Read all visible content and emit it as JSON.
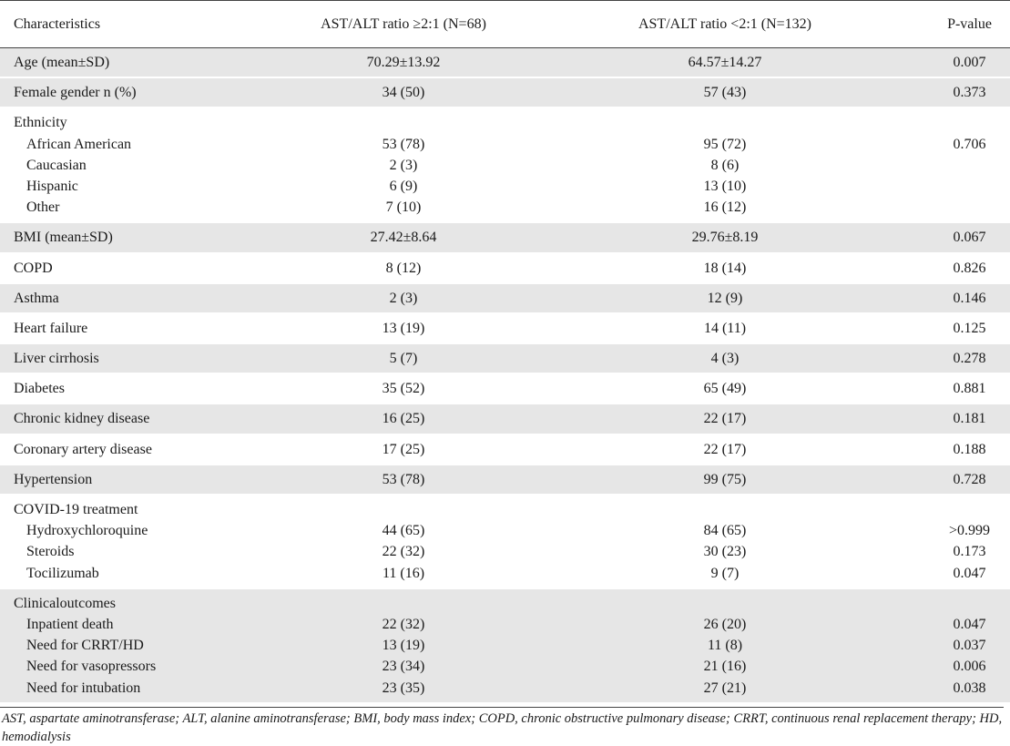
{
  "headers": [
    "Characteristics",
    "AST/ALT ratio ≥2:1 (N=68)",
    "AST/ALT ratio <2:1 (N=132)",
    "P-value"
  ],
  "simple_rows": [
    {
      "label": "Age (mean±SD)",
      "a": "70.29±13.92",
      "b": "64.57±14.27",
      "p": "0.007"
    },
    {
      "label": "Female gender n (%)",
      "a": "34 (50)",
      "b": "57 (43)",
      "p": "0.373"
    }
  ],
  "ethnicity": {
    "label": "Ethnicity",
    "items": [
      {
        "label": "African American",
        "a": "53 (78)",
        "b": "95 (72)",
        "p": "0.706"
      },
      {
        "label": "Caucasian",
        "a": "2 (3)",
        "b": "8 (6)",
        "p": ""
      },
      {
        "label": "Hispanic",
        "a": "6 (9)",
        "b": "13 (10)",
        "p": ""
      },
      {
        "label": "Other",
        "a": "7 (10)",
        "b": "16 (12)",
        "p": ""
      }
    ]
  },
  "comorbidity_rows": [
    {
      "label": "BMI (mean±SD)",
      "a": "27.42±8.64",
      "b": "29.76±8.19",
      "p": "0.067"
    },
    {
      "label": "COPD",
      "a": "8 (12)",
      "b": "18 (14)",
      "p": "0.826"
    },
    {
      "label": "Asthma",
      "a": "2 (3)",
      "b": "12 (9)",
      "p": "0.146"
    },
    {
      "label": "Heart failure",
      "a": "13 (19)",
      "b": "14 (11)",
      "p": "0.125"
    },
    {
      "label": "Liver cirrhosis",
      "a": "5 (7)",
      "b": "4 (3)",
      "p": "0.278"
    },
    {
      "label": "Diabetes",
      "a": "35 (52)",
      "b": "65 (49)",
      "p": "0.881"
    },
    {
      "label": "Chronic kidney disease",
      "a": "16 (25)",
      "b": "22 (17)",
      "p": "0.181"
    },
    {
      "label": "Coronary artery disease",
      "a": "17 (25)",
      "b": "22 (17)",
      "p": "0.188"
    },
    {
      "label": "Hypertension",
      "a": "53 (78)",
      "b": "99 (75)",
      "p": "0.728"
    }
  ],
  "treatment": {
    "label": "COVID-19 treatment",
    "items": [
      {
        "label": "Hydroxychloroquine",
        "a": "44 (65)",
        "b": "84 (65)",
        "p": ">0.999"
      },
      {
        "label": "Steroids",
        "a": "22 (32)",
        "b": "30 (23)",
        "p": "0.173"
      },
      {
        "label": "Tocilizumab",
        "a": "11 (16)",
        "b": "9 (7)",
        "p": "0.047"
      }
    ]
  },
  "outcomes": {
    "label": "Clinicaloutcomes",
    "items": [
      {
        "label": "Inpatient death",
        "a": "22 (32)",
        "b": "26 (20)",
        "p": "0.047"
      },
      {
        "label": "Need for CRRT/HD",
        "a": "13 (19)",
        "b": "11 (8)",
        "p": "0.037"
      },
      {
        "label": "Need for vasopressors",
        "a": "23 (34)",
        "b": "21 (16)",
        "p": "0.006"
      },
      {
        "label": "Need for intubation",
        "a": "23 (35)",
        "b": "27 (21)",
        "p": "0.038"
      }
    ]
  },
  "footnote": "AST, aspartate aminotransferase; ALT, alanine aminotransferase; BMI, body mass index; COPD, chronic obstructive pulmonary disease; CRRT, continuous renal replacement therapy; HD, hemodialysis"
}
